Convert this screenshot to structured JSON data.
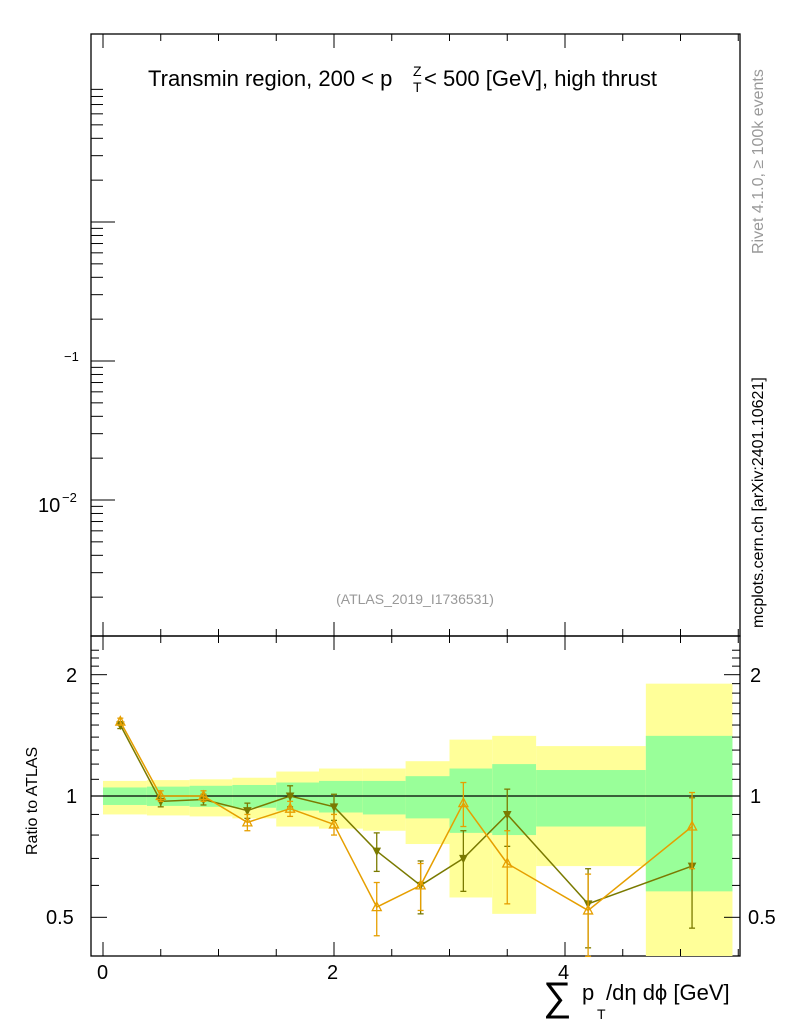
{
  "colors": {
    "band_outer": "#ffff99",
    "band_inner": "#99ff99",
    "series_a": "#7a7a00",
    "series_b": "#e69f00",
    "frame": "#000000",
    "side_text": "#999999"
  },
  "top": {
    "title_main": "Transmin region, 200 < p",
    "title_sup": "Z",
    "title_sub": "T",
    "title_end": " < 500 [GeV], high thrust",
    "analysis_id": "(ATLAS_2019_I1736531)",
    "ytick_labels": [
      {
        "mant": "",
        "exp": "−1",
        "value": 0.1
      },
      {
        "mant": "10",
        "exp": "−2",
        "value": 0.01
      }
    ]
  },
  "side": {
    "rivet": "Rivet 4.1.0, ≥ 100k events",
    "mcplots": "mcplots.cern.ch [arXiv:2401.10621]"
  },
  "ratio": {
    "ylabel": "Ratio to ATLAS",
    "ytick_labels": [
      "2",
      "1",
      "0.5"
    ],
    "xtick_labels": [
      "0",
      "2",
      "4"
    ]
  },
  "xlabel": {
    "sum": "∑",
    "p": "p",
    "sub": "T",
    "rest": "/dη dϕ [GeV]"
  },
  "chart_data": {
    "type": "line",
    "xlim": [
      -0.1,
      5.6
    ],
    "ylim_ratio": [
      0.43,
      2.3
    ],
    "y_scale_ratio": "log",
    "reference_line": 1,
    "bands": [
      {
        "x0": 0.0,
        "x1": 0.38,
        "inner": [
          0.95,
          1.05
        ],
        "outer": [
          0.9,
          1.09
        ]
      },
      {
        "x0": 0.38,
        "x1": 0.75,
        "inner": [
          0.945,
          1.055
        ],
        "outer": [
          0.895,
          1.095
        ]
      },
      {
        "x0": 0.75,
        "x1": 1.12,
        "inner": [
          0.94,
          1.06
        ],
        "outer": [
          0.89,
          1.1
        ]
      },
      {
        "x0": 1.12,
        "x1": 1.5,
        "inner": [
          0.935,
          1.065
        ],
        "outer": [
          0.88,
          1.11
        ]
      },
      {
        "x0": 1.5,
        "x1": 1.87,
        "inner": [
          0.92,
          1.08
        ],
        "outer": [
          0.84,
          1.15
        ]
      },
      {
        "x0": 1.87,
        "x1": 2.25,
        "inner": [
          0.91,
          1.09
        ],
        "outer": [
          0.83,
          1.17
        ]
      },
      {
        "x0": 2.25,
        "x1": 2.62,
        "inner": [
          0.9,
          1.09
        ],
        "outer": [
          0.82,
          1.17
        ]
      },
      {
        "x0": 2.62,
        "x1": 3.0,
        "inner": [
          0.88,
          1.12
        ],
        "outer": [
          0.76,
          1.22
        ]
      },
      {
        "x0": 3.0,
        "x1": 3.37,
        "inner": [
          0.81,
          1.17
        ],
        "outer": [
          0.56,
          1.38
        ]
      },
      {
        "x0": 3.37,
        "x1": 3.75,
        "inner": [
          0.8,
          1.2
        ],
        "outer": [
          0.51,
          1.41
        ]
      },
      {
        "x0": 3.75,
        "x1": 4.7,
        "inner": [
          0.84,
          1.16
        ],
        "outer": [
          0.67,
          1.33
        ]
      },
      {
        "x0": 4.7,
        "x1": 5.45,
        "inner": [
          0.58,
          1.41
        ],
        "outer": [
          0.35,
          1.9
        ]
      }
    ],
    "series": [
      {
        "color_key": "series_a",
        "marker": "triangle-down",
        "x": [
          0.15,
          0.5,
          0.87,
          1.25,
          1.62,
          2.0,
          2.37,
          2.75,
          3.12,
          3.5,
          4.2,
          5.1
        ],
        "y": [
          1.5,
          0.97,
          0.98,
          0.92,
          1.0,
          0.94,
          0.73,
          0.6,
          0.7,
          0.9,
          0.54,
          0.67
        ],
        "err_lo": [
          0.03,
          0.03,
          0.03,
          0.04,
          0.06,
          0.07,
          0.08,
          0.09,
          0.12,
          0.15,
          0.12,
          0.2
        ],
        "err_hi": [
          0.03,
          0.03,
          0.03,
          0.04,
          0.06,
          0.07,
          0.08,
          0.09,
          0.12,
          0.14,
          0.12,
          0.32
        ]
      },
      {
        "color_key": "series_b",
        "marker": "triangle-up",
        "x": [
          0.15,
          0.5,
          0.87,
          1.25,
          1.62,
          2.0,
          2.37,
          2.75,
          3.12,
          3.5,
          4.2,
          5.1
        ],
        "y": [
          1.53,
          1.0,
          1.0,
          0.86,
          0.93,
          0.85,
          0.53,
          0.6,
          0.96,
          0.68,
          0.52,
          0.84
        ],
        "err_lo": [
          0.03,
          0.03,
          0.03,
          0.04,
          0.04,
          0.05,
          0.08,
          0.08,
          0.12,
          0.14,
          0.12,
          0.18
        ],
        "err_hi": [
          0.03,
          0.03,
          0.03,
          0.04,
          0.04,
          0.05,
          0.08,
          0.08,
          0.12,
          0.14,
          0.12,
          0.18
        ]
      }
    ]
  }
}
